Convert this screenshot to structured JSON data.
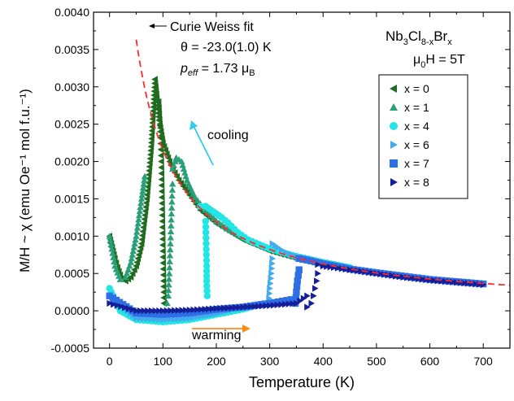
{
  "chart_data": {
    "type": "scatter",
    "xlabel": "Temperature (K)",
    "ylabel": "M/H ~ χ (emu Oe⁻¹ mol f.u.⁻¹)",
    "xlim": [
      -30,
      750
    ],
    "ylim": [
      -0.0005,
      0.004
    ],
    "xticks": [
      0,
      100,
      200,
      300,
      400,
      500,
      600,
      700
    ],
    "yticks": [
      -0.0005,
      0.0,
      0.0005,
      0.001,
      0.0015,
      0.002,
      0.0025,
      0.003,
      0.0035,
      0.004
    ],
    "ytick_labels": [
      "-0.0005",
      "0.0000",
      "0.0005",
      "0.0010",
      "0.0015",
      "0.0020",
      "0.0025",
      "0.0030",
      "0.0035",
      "0.0040"
    ],
    "grid": false,
    "legend_position": "right",
    "compound": {
      "base": "Nb",
      "s1": "3",
      "mid": "Cl",
      "s2": "8-x",
      "end": "Br",
      "s3": "x"
    },
    "field": {
      "mu": "μ",
      "sub": "0",
      "rest": "H = 5T"
    },
    "curie_weiss": {
      "label": "Curie Weiss fit",
      "theta_text": "θ = -23.0(1.0) K",
      "p": "p",
      "p_sub": "eff",
      "p_rest": " = 1.73 μ",
      "p_unit_sub": "B",
      "color": "#ff2a2a",
      "C": 0.2652,
      "theta": -23.0,
      "x_range": [
        50,
        750
      ]
    },
    "annotations": {
      "cooling": {
        "text": "cooling",
        "color": "#33ccee"
      },
      "warming": {
        "text": "warming",
        "color": "#ff8c1a"
      }
    },
    "series": [
      {
        "name": "x = 0",
        "marker": "triangle-left",
        "color": "#1f6b1f",
        "cool": [
          [
            700,
            0.00036
          ],
          [
            650,
            0.00039
          ],
          [
            600,
            0.00042
          ],
          [
            550,
            0.00046
          ],
          [
            500,
            0.00051
          ],
          [
            450,
            0.00056
          ],
          [
            400,
            0.00062
          ],
          [
            350,
            0.0007
          ],
          [
            300,
            0.0008
          ],
          [
            250,
            0.00095
          ],
          [
            200,
            0.00117
          ],
          [
            170,
            0.00135
          ],
          [
            150,
            0.00155
          ],
          [
            130,
            0.00175
          ],
          [
            115,
            0.00195
          ],
          [
            100,
            0.00225
          ],
          [
            92,
            0.0026
          ],
          [
            88,
            0.0029
          ],
          [
            85,
            0.0031
          ]
        ],
        "drop": [
          [
            92,
            0.0028
          ],
          [
            95,
            0.0024
          ],
          [
            97,
            0.002
          ],
          [
            98,
            0.0016
          ],
          [
            99,
            0.0012
          ],
          [
            100,
            0.0008
          ],
          [
            101,
            0.0004
          ],
          [
            102,
            0.0001
          ]
        ],
        "warm": [
          [
            0,
            0.001
          ],
          [
            5,
            0.00085
          ],
          [
            10,
            0.0007
          ],
          [
            15,
            0.00058
          ],
          [
            20,
            0.00048
          ],
          [
            30,
            0.0004
          ],
          [
            40,
            0.00045
          ],
          [
            50,
            0.0006
          ],
          [
            60,
            0.0009
          ],
          [
            70,
            0.0015
          ],
          [
            78,
            0.0022
          ],
          [
            85,
            0.0031
          ]
        ]
      },
      {
        "name": "x = 1",
        "marker": "triangle-up",
        "color": "#2aa07a",
        "cool": [
          [
            450,
            0.00058
          ],
          [
            400,
            0.00065
          ],
          [
            350,
            0.00073
          ],
          [
            300,
            0.00083
          ],
          [
            250,
            0.00098
          ],
          [
            220,
            0.0011
          ],
          [
            200,
            0.0012
          ],
          [
            180,
            0.00135
          ],
          [
            160,
            0.00152
          ],
          [
            145,
            0.00175
          ],
          [
            135,
            0.002
          ],
          [
            125,
            0.00205
          ],
          [
            118,
            0.0019
          ]
        ],
        "drop": [
          [
            118,
            0.0017
          ],
          [
            116,
            0.0013
          ],
          [
            114,
            0.0009
          ],
          [
            112,
            0.0005
          ],
          [
            110,
            0.0002
          ],
          [
            108,
            0.0001
          ]
        ],
        "warm": [
          [
            0,
            0.001
          ],
          [
            10,
            0.0006
          ],
          [
            20,
            0.00042
          ],
          [
            30,
            0.00045
          ],
          [
            40,
            0.00065
          ],
          [
            50,
            0.001
          ],
          [
            60,
            0.0015
          ],
          [
            66,
            0.0018
          ]
        ]
      },
      {
        "name": "x = 4",
        "marker": "circle",
        "color": "#22e5e5",
        "cool": [
          [
            450,
            0.00058
          ],
          [
            400,
            0.00065
          ],
          [
            350,
            0.00073
          ],
          [
            300,
            0.00083
          ],
          [
            260,
            0.00095
          ],
          [
            240,
            0.00105
          ],
          [
            222,
            0.00118
          ],
          [
            210,
            0.00125
          ],
          [
            200,
            0.0013
          ],
          [
            190,
            0.00135
          ],
          [
            180,
            0.0014
          ],
          [
            170,
            0.0014
          ]
        ],
        "drop": [
          [
            180,
            0.0012
          ],
          [
            181,
            0.0009
          ],
          [
            182,
            0.0006
          ],
          [
            182,
            0.0004
          ],
          [
            183,
            0.0002
          ]
        ],
        "warm": [
          [
            0,
            0.0003
          ],
          [
            20,
            0.0
          ],
          [
            50,
            -0.00012
          ],
          [
            100,
            -0.00015
          ],
          [
            150,
            -0.00012
          ],
          [
            200,
            -5e-05
          ],
          [
            250,
            2e-05
          ],
          [
            280,
            8e-05
          ]
        ]
      },
      {
        "name": "x = 6",
        "marker": "triangle-right",
        "color": "#44aaee",
        "cool": [
          [
            450,
            0.00058
          ],
          [
            400,
            0.00065
          ],
          [
            350,
            0.00073
          ],
          [
            330,
            0.00078
          ],
          [
            315,
            0.00085
          ],
          [
            305,
            0.0009
          ]
        ],
        "drop": [
          [
            305,
            0.0007
          ],
          [
            303,
            0.0005
          ],
          [
            300,
            0.0003
          ],
          [
            298,
            0.0001
          ]
        ],
        "warm": [
          [
            0,
            0.0002
          ],
          [
            50,
            -0.0001
          ],
          [
            100,
            -0.00012
          ],
          [
            150,
            -0.0001
          ],
          [
            200,
            -4e-05
          ],
          [
            250,
            5e-05
          ],
          [
            290,
            0.0001
          ]
        ]
      },
      {
        "name": "x = 7",
        "marker": "square",
        "color": "#2e6fe6",
        "cool": [
          [
            700,
            0.00036
          ],
          [
            600,
            0.00042
          ],
          [
            500,
            0.00051
          ],
          [
            450,
            0.00056
          ],
          [
            400,
            0.00063
          ],
          [
            370,
            0.00068
          ],
          [
            355,
            0.0007
          ]
        ],
        "drop": [
          [
            355,
            0.00055
          ],
          [
            352,
            0.0004
          ],
          [
            350,
            0.00025
          ],
          [
            348,
            0.0001
          ]
        ],
        "warm": [
          [
            0,
            0.0002
          ],
          [
            50,
            -3e-05
          ],
          [
            100,
            -5e-05
          ],
          [
            150,
            -3e-05
          ],
          [
            200,
            2e-05
          ],
          [
            250,
            5e-05
          ],
          [
            300,
            0.0001
          ],
          [
            340,
            0.00015
          ]
        ]
      },
      {
        "name": "x = 8",
        "marker": "triangle-right",
        "color": "#141e99",
        "cool": [
          [
            700,
            0.00035
          ],
          [
            650,
            0.00038
          ],
          [
            600,
            0.00041
          ],
          [
            550,
            0.00045
          ],
          [
            500,
            0.0005
          ],
          [
            450,
            0.00055
          ],
          [
            420,
            0.00058
          ],
          [
            400,
            0.0006
          ],
          [
            390,
            0.00062
          ]
        ],
        "drop": [
          [
            390,
            0.0005
          ],
          [
            388,
            0.0004
          ],
          [
            385,
            0.0003
          ],
          [
            382,
            0.0002
          ],
          [
            378,
            0.0001
          ],
          [
            370,
            5e-05
          ]
        ],
        "warm": [
          [
            0,
            0.0001
          ],
          [
            50,
            0.0
          ],
          [
            100,
            0.0
          ],
          [
            150,
            1e-05
          ],
          [
            200,
            3e-05
          ],
          [
            250,
            5e-05
          ],
          [
            300,
            7e-05
          ],
          [
            350,
            0.0001
          ],
          [
            370,
            0.0002
          ]
        ]
      }
    ]
  }
}
